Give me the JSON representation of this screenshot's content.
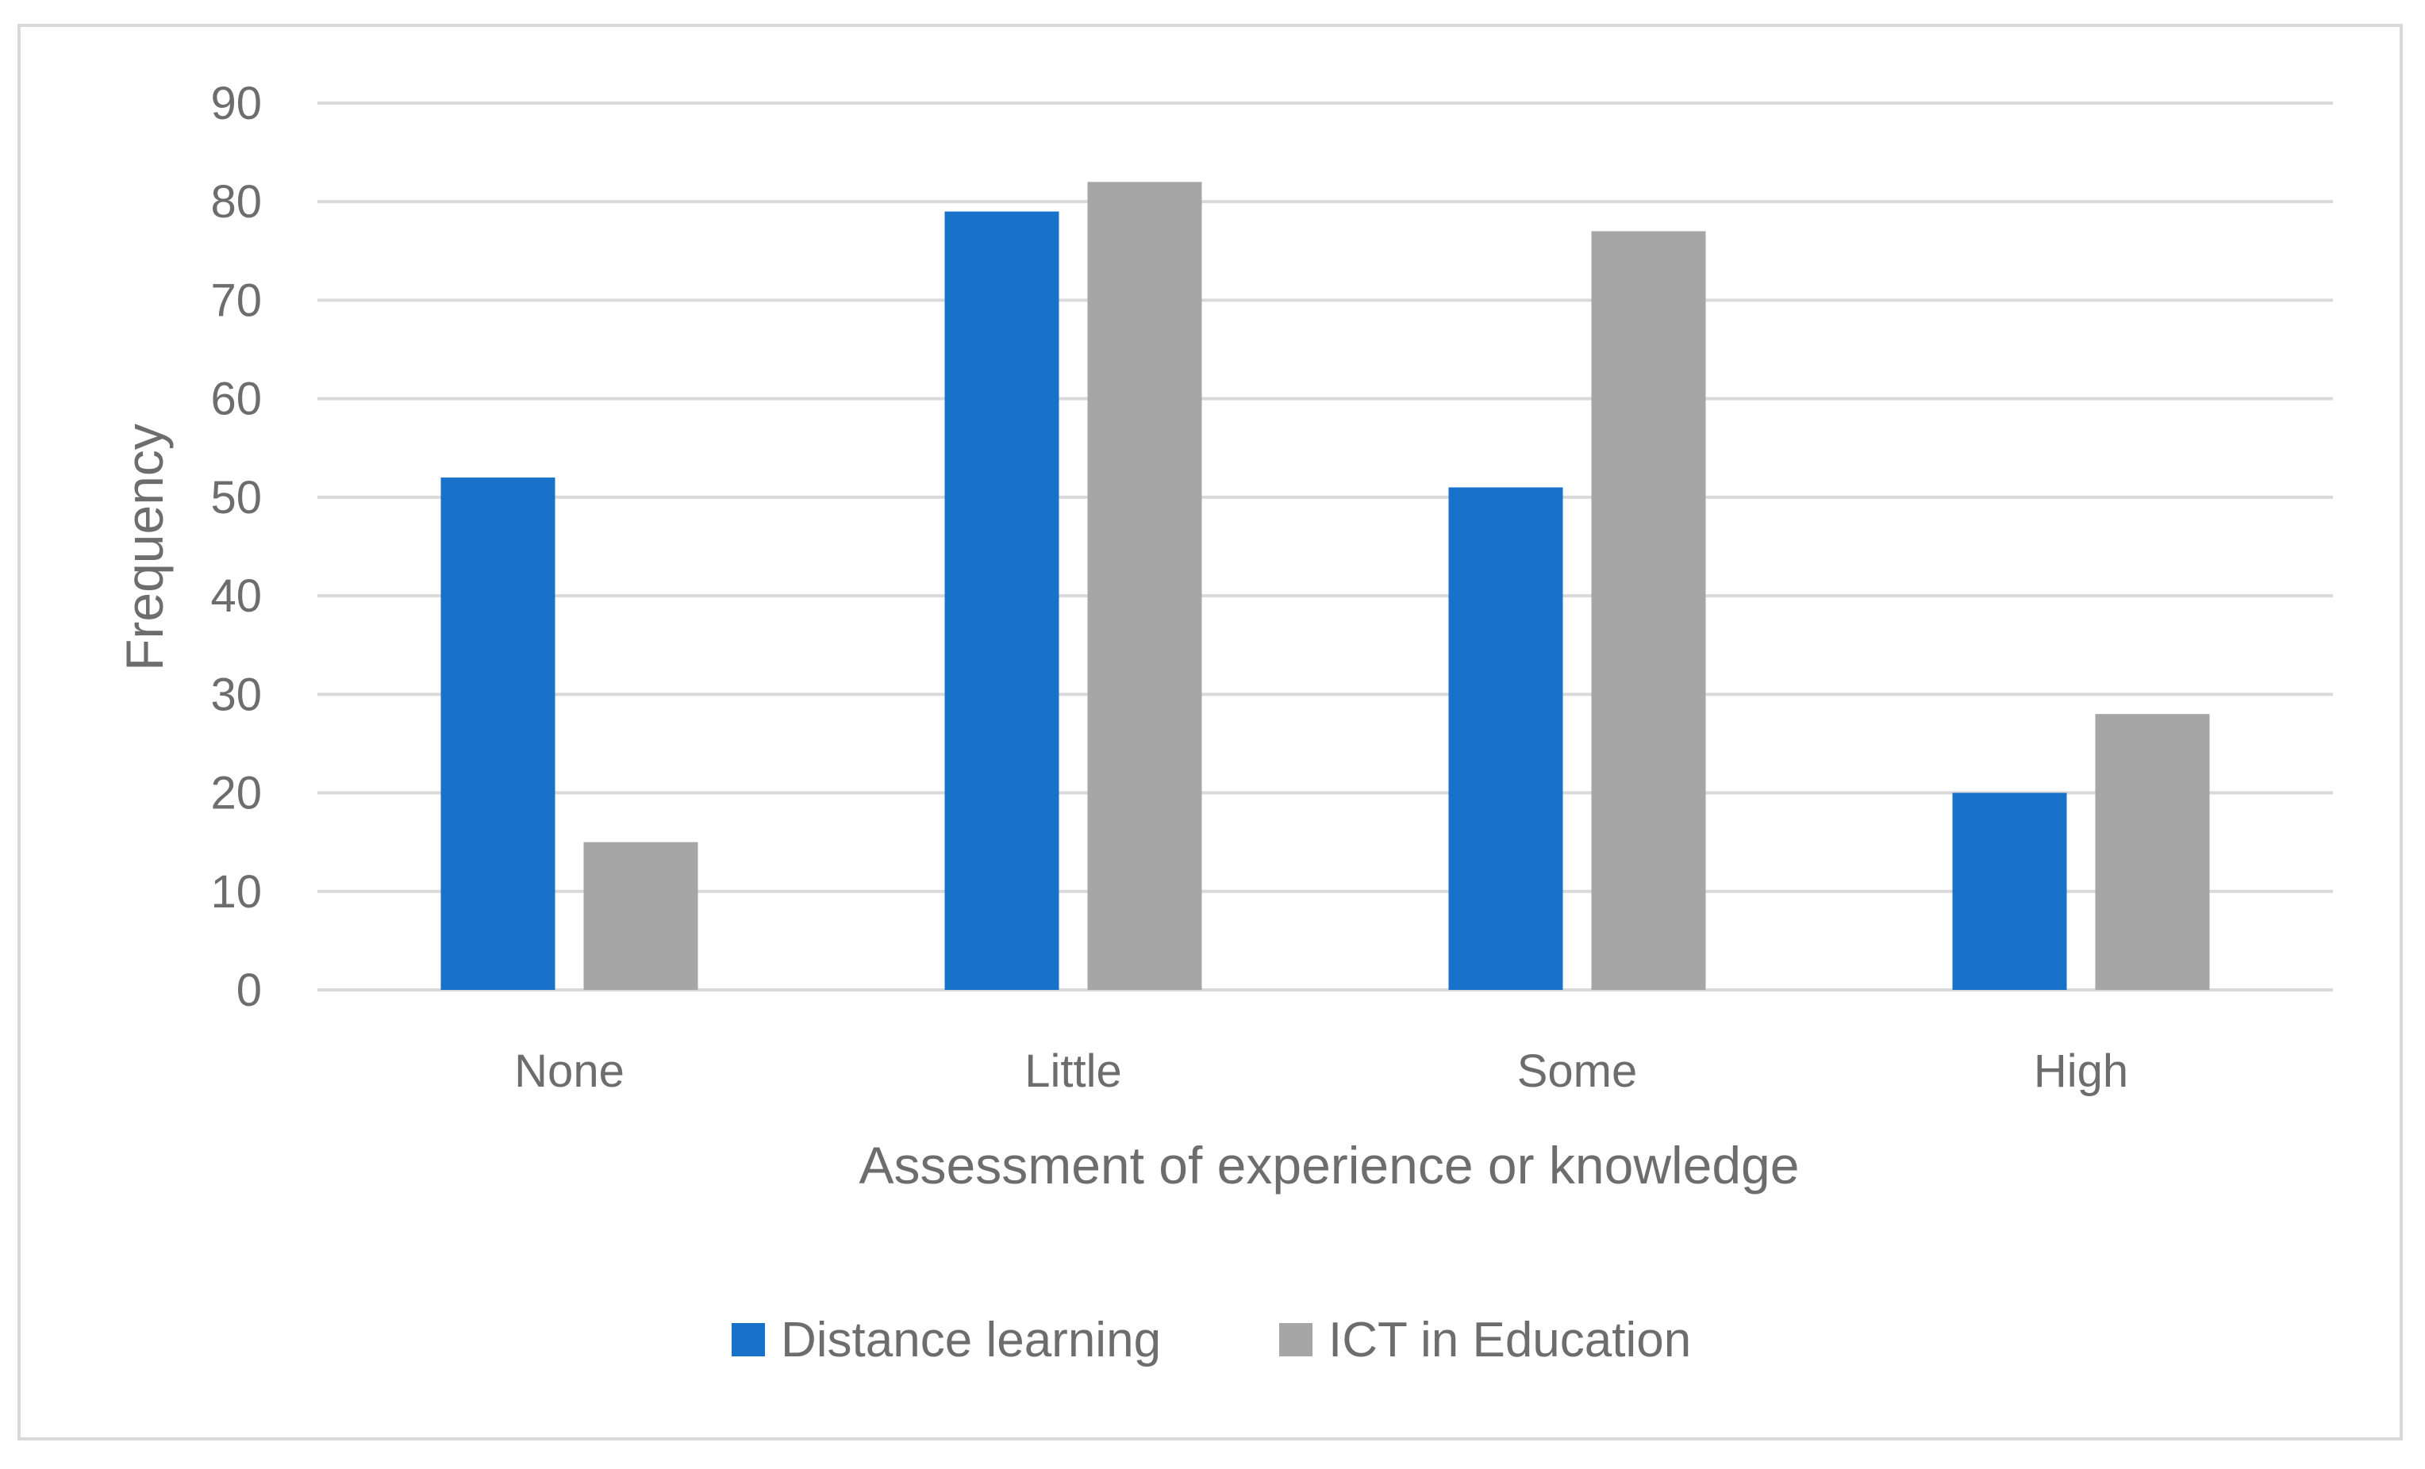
{
  "chart_data": {
    "type": "bar",
    "title": "",
    "xlabel": "Assessment of experience or knowledge",
    "ylabel": "Frequency",
    "categories": [
      "None",
      "Little",
      "Some",
      "High"
    ],
    "series": [
      {
        "name": "Distance learning",
        "color": "#1872c9",
        "values": [
          52,
          79,
          51,
          20
        ]
      },
      {
        "name": "ICT in Education",
        "color": "#a6a6a6",
        "values": [
          15,
          82,
          77,
          28
        ]
      }
    ],
    "ylim": [
      0,
      90
    ],
    "yticks": [
      "0",
      "10",
      "20",
      "30",
      "40",
      "50",
      "60",
      "70",
      "80",
      "90"
    ],
    "grid": true,
    "gridColor": "#d9d9d9",
    "legend": "bottom"
  }
}
